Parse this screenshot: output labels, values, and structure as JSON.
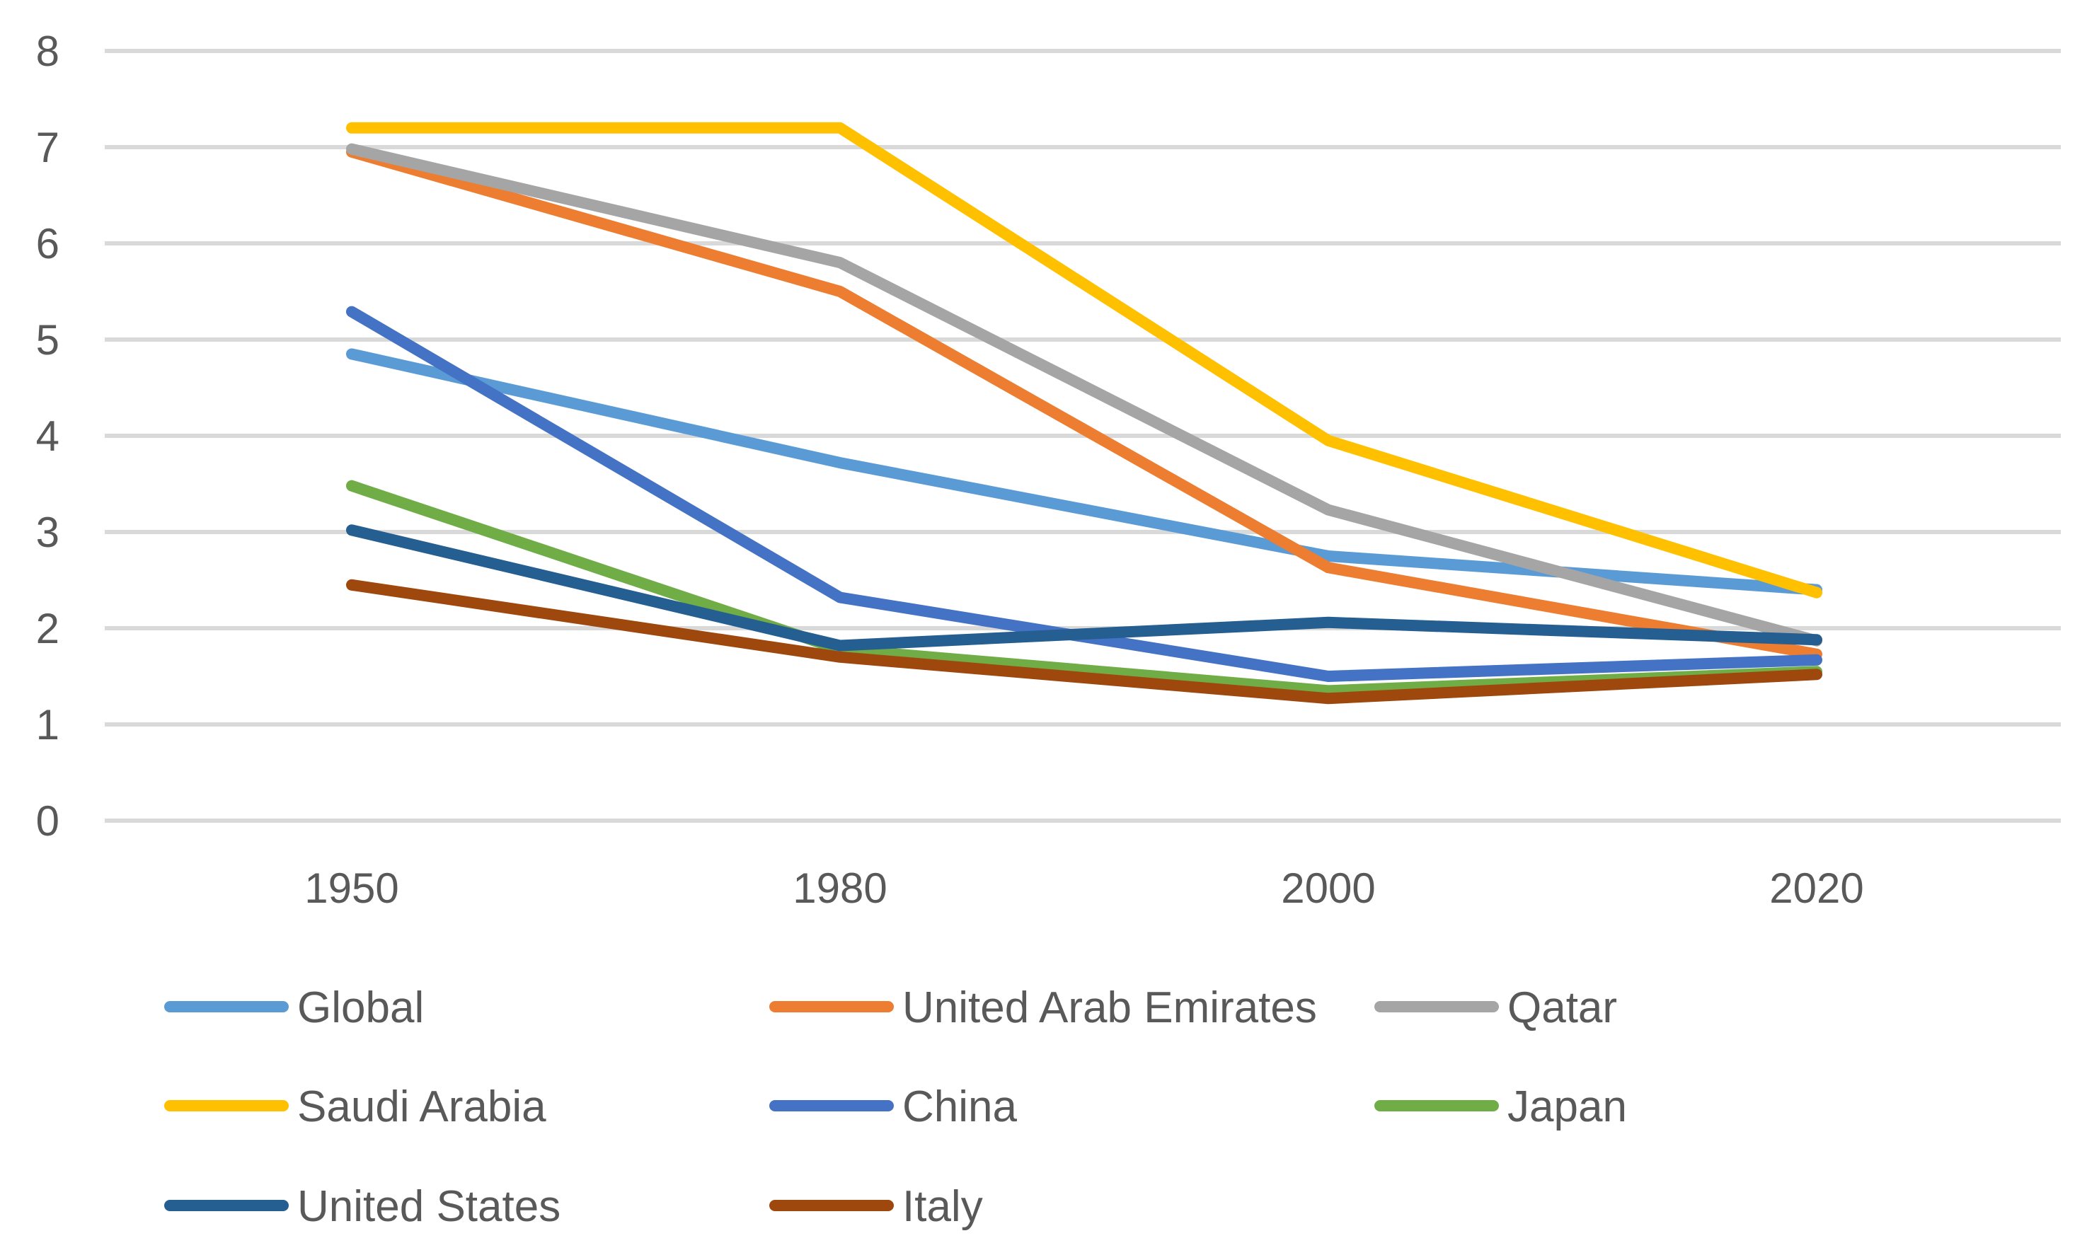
{
  "chart_data": {
    "type": "line",
    "title": "",
    "xlabel": "",
    "ylabel": "",
    "categories": [
      "1950",
      "1980",
      "2000",
      "2020"
    ],
    "ylim": [
      0,
      8
    ],
    "yticks": [
      "0",
      "1",
      "2",
      "3",
      "4",
      "5",
      "6",
      "7",
      "8"
    ],
    "grid": true,
    "legend_position": "bottom",
    "series": [
      {
        "name": "Global",
        "color": "#5b9bd5",
        "values": [
          4.85,
          3.72,
          2.75,
          2.4
        ]
      },
      {
        "name": "United Arab Emirates",
        "color": "#ed7d31",
        "values": [
          6.95,
          5.5,
          2.63,
          1.73
        ]
      },
      {
        "name": "Qatar",
        "color": "#a5a5a5",
        "values": [
          6.98,
          5.8,
          3.23,
          1.87
        ]
      },
      {
        "name": "Saudi Arabia",
        "color": "#ffc000",
        "values": [
          7.2,
          7.2,
          3.95,
          2.37
        ]
      },
      {
        "name": "China",
        "color": "#4472c4",
        "values": [
          5.29,
          2.32,
          1.5,
          1.67
        ]
      },
      {
        "name": "Japan",
        "color": "#70ad47",
        "values": [
          3.48,
          1.78,
          1.35,
          1.55
        ]
      },
      {
        "name": "United States",
        "color": "#255e91",
        "values": [
          3.02,
          1.82,
          2.06,
          1.88
        ]
      },
      {
        "name": "Italy",
        "color": "#9e480e",
        "values": [
          2.45,
          1.7,
          1.27,
          1.52
        ]
      }
    ]
  }
}
